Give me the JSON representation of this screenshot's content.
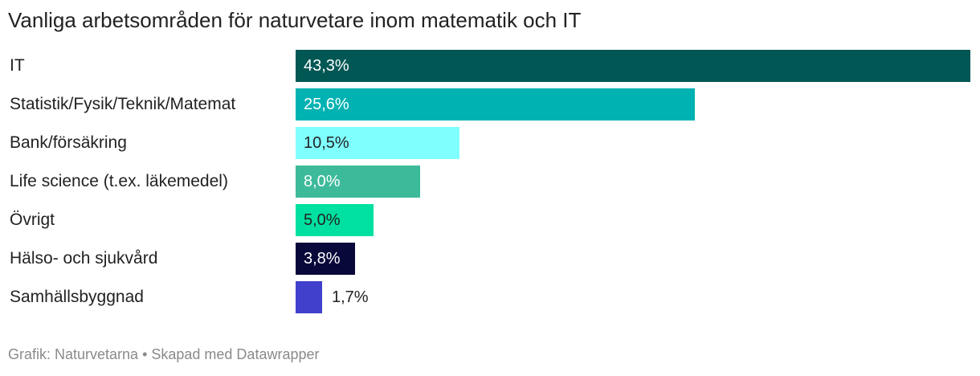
{
  "title": "Vanliga arbetsområden för naturvetare inom matematik och IT",
  "footer": "Grafik: Naturvetarna • Skapad med Datawrapper",
  "chart_data": {
    "type": "bar",
    "orientation": "horizontal",
    "title": "Vanliga arbetsområden för naturvetare inom matematik och IT",
    "categories": [
      "IT",
      "Statistik/Fysik/Teknik/Matemat",
      "Bank/försäkring",
      "Life science (t.ex. läkemedel)",
      "Övrigt",
      "Hälso- och sjukvård",
      "Samhällsbyggnad"
    ],
    "values": [
      43.3,
      25.6,
      10.5,
      8.0,
      5.0,
      3.8,
      1.7
    ],
    "value_labels": [
      "43,3%",
      "25,6%",
      "10,5%",
      "8,0%",
      "5,0%",
      "3,8%",
      "1,7%"
    ],
    "colors": [
      "#015754",
      "#00b2b2",
      "#80ffff",
      "#3dba9a",
      "#00e0a0",
      "#08083a",
      "#4040cc"
    ],
    "label_colors": [
      "#ffffff",
      "#ffffff",
      "#222222",
      "#ffffff",
      "#222222",
      "#ffffff",
      "#222222"
    ],
    "xlim": [
      0,
      43.3
    ],
    "grid": false,
    "legend": "none"
  }
}
